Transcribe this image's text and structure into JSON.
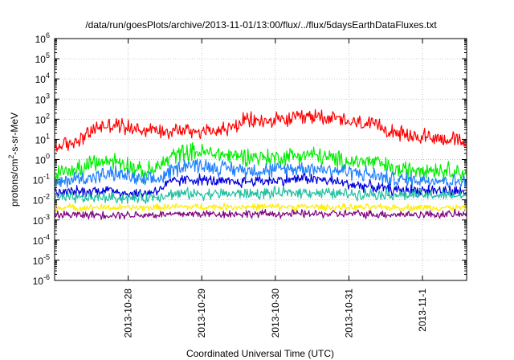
{
  "chart_data": {
    "type": "line",
    "title": "/data/run/goesPlots/archive/2013-11-01/13:00/flux/../flux/5daysEarthDataFluxes.txt",
    "xlabel": "Coordinated Universal Time (UTC)",
    "ylabel_parts": [
      "protons/cm",
      "2",
      "-s-sr-MeV"
    ],
    "x_ticks": [
      "2013-10-28",
      "2013-10-29",
      "2013-10-30",
      "2013-10-31",
      "2013-11-1"
    ],
    "x_tick_positions": [
      1,
      2,
      3,
      4,
      5
    ],
    "xlim": [
      0,
      5.6
    ],
    "y_scale": "log",
    "ylim": [
      1e-06,
      1000000.0
    ],
    "y_tick_exponents": [
      -6,
      -5,
      -4,
      -3,
      -2,
      -1,
      0,
      1,
      2,
      3,
      4,
      5,
      6
    ],
    "grid": true,
    "legend": "none",
    "x": [
      0.0,
      0.2,
      0.4,
      0.6,
      0.8,
      1.0,
      1.2,
      1.4,
      1.6,
      1.8,
      2.0,
      2.2,
      2.4,
      2.6,
      2.8,
      3.0,
      3.2,
      3.4,
      3.6,
      3.8,
      4.0,
      4.2,
      4.4,
      4.6,
      4.8,
      5.0,
      5.2,
      5.4,
      5.6
    ],
    "series": [
      {
        "color": "#ff0000",
        "noise": 0.35,
        "values": [
          4,
          6,
          15,
          40,
          55,
          40,
          30,
          30,
          28,
          30,
          25,
          30,
          35,
          90,
          80,
          80,
          100,
          120,
          150,
          110,
          70,
          60,
          40,
          30,
          12,
          15,
          12,
          10,
          6
        ]
      },
      {
        "color": "#00ee00",
        "noise": 0.4,
        "values": [
          0.15,
          0.3,
          0.4,
          0.7,
          0.9,
          0.6,
          0.2,
          0.4,
          1.5,
          2.5,
          2.2,
          2.0,
          1.5,
          1.5,
          1.3,
          1.2,
          1.5,
          1.8,
          1.5,
          1.0,
          0.8,
          0.8,
          0.7,
          0.3,
          0.3,
          0.4,
          0.3,
          0.3,
          0.2
        ]
      },
      {
        "color": "#1e7fff",
        "noise": 0.35,
        "values": [
          0.05,
          0.1,
          0.12,
          0.15,
          0.2,
          0.15,
          0.08,
          0.1,
          0.3,
          0.6,
          0.5,
          0.4,
          0.35,
          0.3,
          0.3,
          0.3,
          0.35,
          0.4,
          0.35,
          0.3,
          0.25,
          0.2,
          0.15,
          0.1,
          0.1,
          0.1,
          0.1,
          0.08,
          0.08
        ]
      },
      {
        "color": "#0000dd",
        "noise": 0.25,
        "values": [
          0.02,
          0.025,
          0.025,
          0.03,
          0.03,
          0.02,
          0.02,
          0.03,
          0.08,
          0.1,
          0.1,
          0.08,
          0.07,
          0.08,
          0.09,
          0.09,
          0.1,
          0.12,
          0.1,
          0.08,
          0.06,
          0.05,
          0.04,
          0.03,
          0.03,
          0.03,
          0.03,
          0.025,
          0.025
        ]
      },
      {
        "color": "#20c0a0",
        "noise": 0.25,
        "values": [
          0.012,
          0.012,
          0.012,
          0.013,
          0.013,
          0.012,
          0.012,
          0.015,
          0.02,
          0.02,
          0.02,
          0.02,
          0.02,
          0.02,
          0.02,
          0.022,
          0.022,
          0.025,
          0.022,
          0.02,
          0.02,
          0.02,
          0.02,
          0.018,
          0.017,
          0.017,
          0.017,
          0.016,
          0.016
        ]
      },
      {
        "color": "#ffee00",
        "noise": 0.15,
        "values": [
          0.004,
          0.0042,
          0.004,
          0.0042,
          0.004,
          0.0042,
          0.004,
          0.0042,
          0.0045,
          0.0045,
          0.0045,
          0.0045,
          0.0045,
          0.0045,
          0.0045,
          0.0045,
          0.0045,
          0.0045,
          0.0045,
          0.0042,
          0.0042,
          0.0042,
          0.0042,
          0.0042,
          0.0042,
          0.0042,
          0.0042,
          0.004,
          0.004
        ]
      },
      {
        "color": "#800080",
        "noise": 0.18,
        "values": [
          0.0018,
          0.0018,
          0.0018,
          0.0018,
          0.0018,
          0.0018,
          0.0018,
          0.0018,
          0.0019,
          0.002,
          0.002,
          0.002,
          0.002,
          0.002,
          0.002,
          0.002,
          0.002,
          0.002,
          0.002,
          0.002,
          0.002,
          0.002,
          0.0019,
          0.0019,
          0.0019,
          0.0019,
          0.0019,
          0.0019,
          0.0019
        ]
      }
    ]
  }
}
